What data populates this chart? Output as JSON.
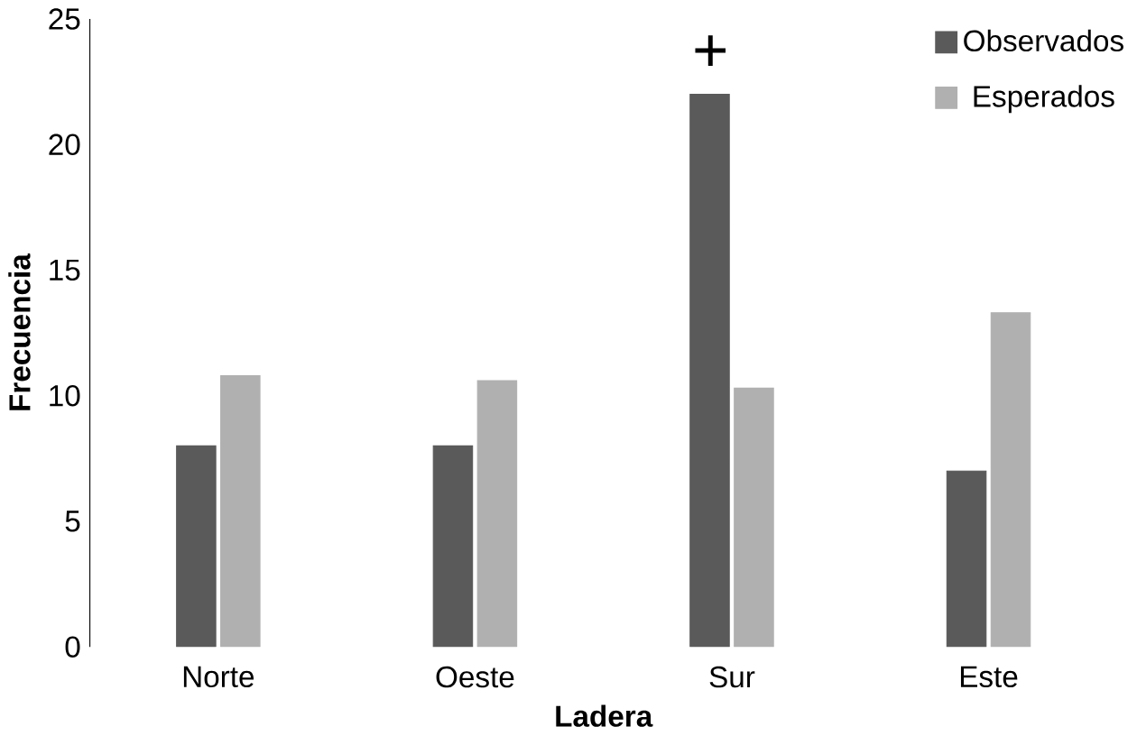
{
  "chart_data": {
    "type": "bar",
    "xlabel": "Ladera",
    "ylabel": "Frecuencia",
    "categories": [
      "Norte",
      "Oeste",
      "Sur",
      "Este"
    ],
    "series": [
      {
        "name": "Observados",
        "color": "#5a5a5a",
        "values": [
          8,
          8,
          22,
          7
        ]
      },
      {
        "name": "Esperados",
        "color": "#b0b0b0",
        "values": [
          10.8,
          10.6,
          10.3,
          13.3
        ]
      }
    ],
    "ylim": [
      0,
      25
    ],
    "yticks": [
      0,
      5,
      10,
      15,
      20,
      25
    ],
    "legend": "top right",
    "annotations": [
      "+"
    ]
  }
}
